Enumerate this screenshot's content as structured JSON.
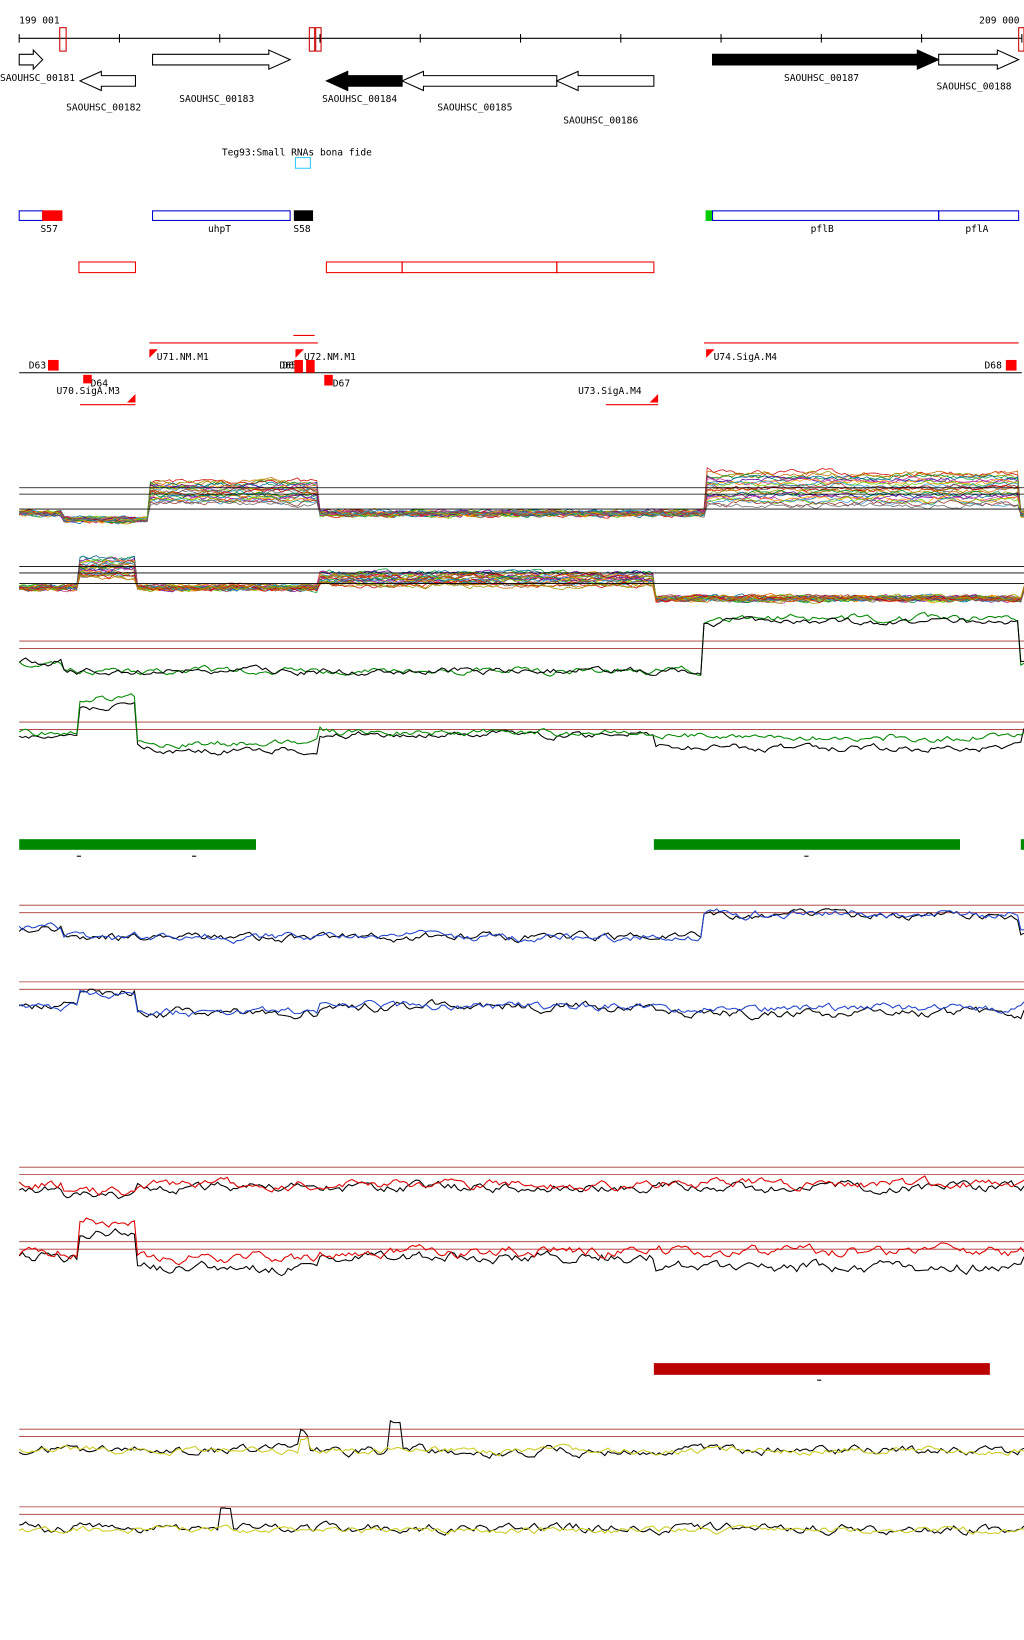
{
  "ruler": {
    "start": "199 001",
    "end": "209 000"
  },
  "genes": [
    "SAOUHSC_00181",
    "SAOUHSC_00182",
    "SAOUHSC_00183",
    "SAOUHSC_00184",
    "SAOUHSC_00185",
    "SAOUHSC_00186",
    "SAOUHSC_00187",
    "SAOUHSC_00188"
  ],
  "track_label": "Teg93:Small RNAs bona fide",
  "features": [
    "S57",
    "uhpT",
    "S58",
    "pflB",
    "pflA"
  ],
  "sites": [
    "D63",
    "D64",
    "U70.SigA.M3",
    "U71.NM.M1",
    "D65",
    "D66",
    "U72.NM.M1",
    "D67",
    "U73.SigA.M4",
    "U74.SigA.M4",
    "D68"
  ]
}
